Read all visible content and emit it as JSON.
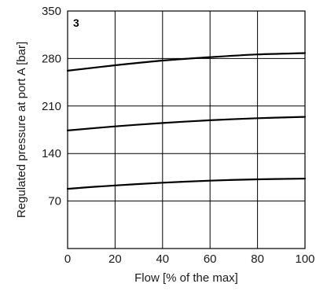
{
  "chart_data": {
    "type": "line",
    "panel_label": "3",
    "xlabel": "Flow [% of the max]",
    "ylabel": "Regulated pressure at port A [bar]",
    "xlim": [
      0,
      100
    ],
    "ylim": [
      0,
      350
    ],
    "x_ticks": [
      "0",
      "20",
      "40",
      "60",
      "80",
      "100"
    ],
    "y_ticks": [
      "70",
      "140",
      "210",
      "280",
      "350"
    ],
    "grid": true,
    "series": [
      {
        "x": [
          0,
          20,
          40,
          60,
          80,
          100
        ],
        "y": [
          262,
          270,
          277,
          282,
          286,
          288
        ]
      },
      {
        "x": [
          0,
          20,
          40,
          60,
          80,
          100
        ],
        "y": [
          174,
          180,
          185,
          189,
          192,
          194
        ]
      },
      {
        "x": [
          0,
          20,
          40,
          60,
          80,
          100
        ],
        "y": [
          88,
          93,
          97,
          100,
          102,
          103
        ]
      }
    ]
  }
}
